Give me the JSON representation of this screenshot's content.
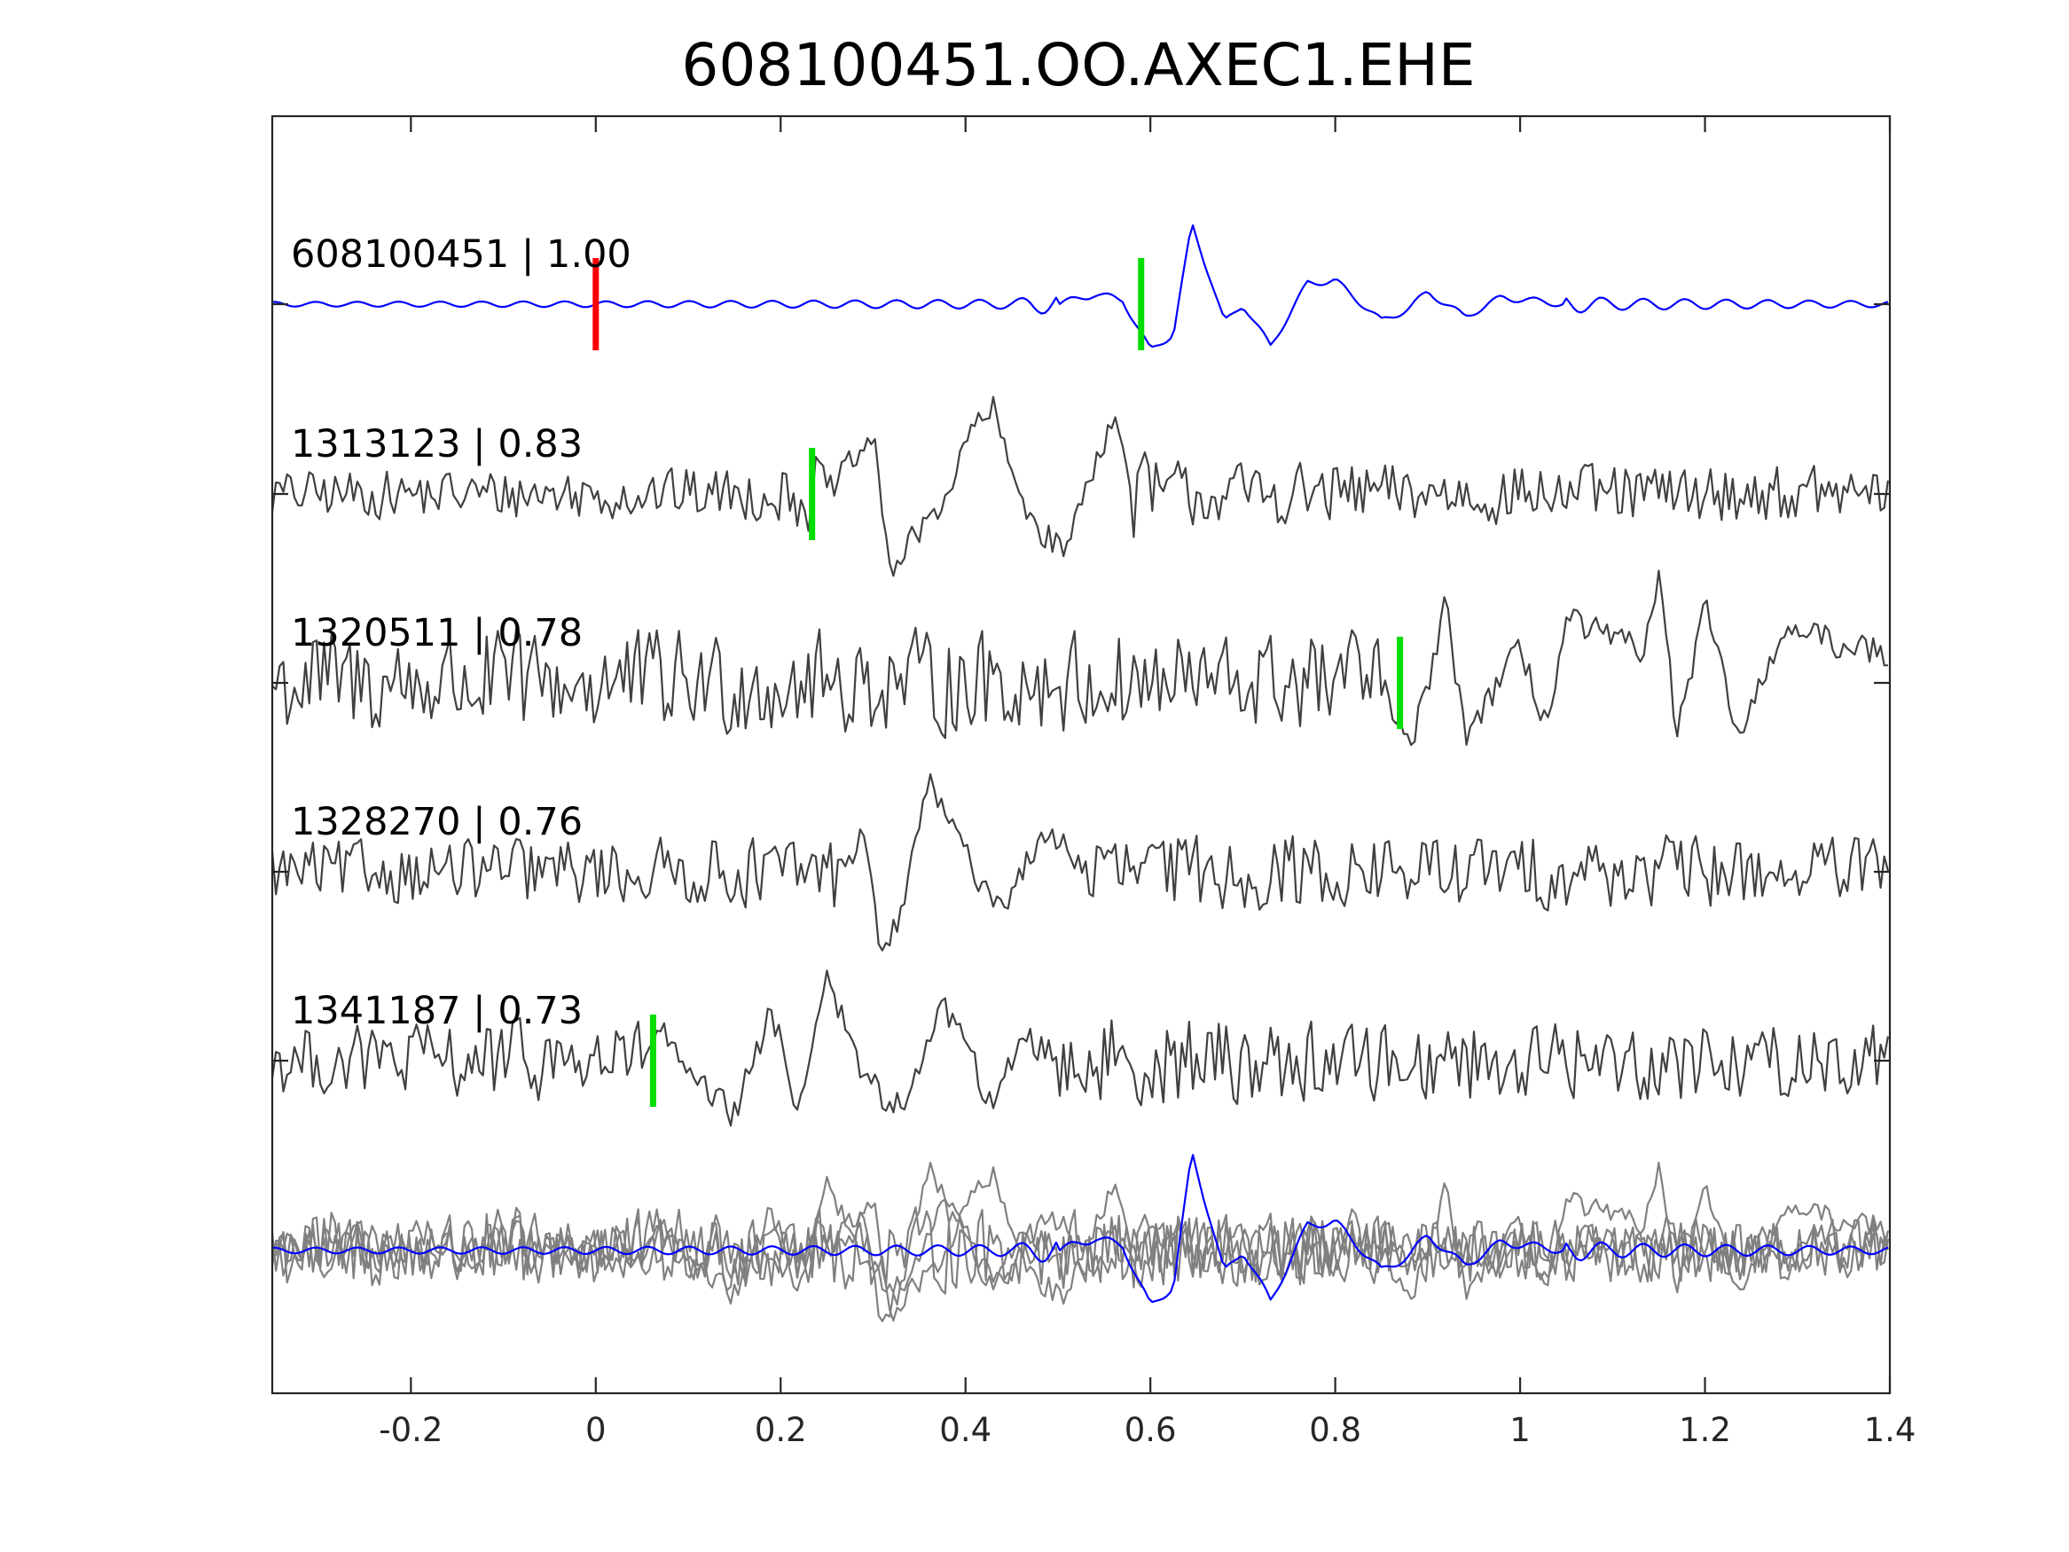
{
  "chart_data": {
    "type": "line",
    "title": "608100451.OO.AXEC1.EHE",
    "xlabel": "",
    "ylabel": "",
    "xlim": [
      -0.35,
      1.4
    ],
    "xticks": [
      -0.2,
      0,
      0.2,
      0.4,
      0.6,
      0.8,
      1,
      1.2,
      1.4
    ],
    "xtick_labels": [
      "-0.2",
      "0",
      "0.2",
      "0.4",
      "0.6",
      "0.8",
      "1",
      "1.2",
      "1.4"
    ],
    "grid": false,
    "sample_dt": 0.004,
    "colors": {
      "template": "#0000ff",
      "neighbor": "#404040",
      "overlay_neighbor": "#808080",
      "pick_template": "#ff0000",
      "pick_arrival": "#00dd00",
      "axes": "#262626"
    },
    "series": [
      {
        "label": "608100451 | 1.00",
        "color": "#0000ff",
        "picks": [
          {
            "t": 0.0,
            "color": "#ff0000"
          },
          {
            "t": 0.59,
            "color": "#00dd00"
          }
        ],
        "envelope": [
          [
            -0.35,
            0.04
          ],
          [
            0.0,
            0.05
          ],
          [
            0.2,
            0.06
          ],
          [
            0.45,
            0.08
          ],
          [
            0.52,
            0.25
          ],
          [
            0.56,
            0.55
          ],
          [
            0.6,
            1.0
          ],
          [
            0.66,
            1.0
          ],
          [
            0.72,
            0.75
          ],
          [
            0.8,
            0.55
          ],
          [
            0.9,
            0.35
          ],
          [
            1.0,
            0.22
          ],
          [
            1.1,
            0.1
          ],
          [
            1.4,
            0.05
          ]
        ],
        "waveform": [
          [
            0.5,
            0.0
          ],
          [
            0.54,
            0.12
          ],
          [
            0.57,
            0.05
          ],
          [
            0.6,
            -0.55
          ],
          [
            0.625,
            -0.35
          ],
          [
            0.645,
            0.95
          ],
          [
            0.665,
            0.3
          ],
          [
            0.68,
            -0.22
          ],
          [
            0.7,
            0.0
          ],
          [
            0.73,
            -0.5
          ],
          [
            0.77,
            0.25
          ],
          [
            0.8,
            0.28
          ],
          [
            0.85,
            -0.2
          ],
          [
            0.88,
            -0.05
          ],
          [
            0.9,
            0.15
          ],
          [
            0.94,
            -0.15
          ],
          [
            0.98,
            0.08
          ],
          [
            1.05,
            0.0
          ]
        ]
      },
      {
        "label": "1313123 | 0.83",
        "color": "#404040",
        "picks": [
          {
            "t": 0.234,
            "color": "#00dd00"
          }
        ],
        "envelope": [
          [
            -0.35,
            0.25
          ],
          [
            0.2,
            0.3
          ],
          [
            0.26,
            0.55
          ],
          [
            0.3,
            1.0
          ],
          [
            0.5,
            1.0
          ],
          [
            0.56,
            0.55
          ],
          [
            0.65,
            0.35
          ],
          [
            1.4,
            0.3
          ]
        ],
        "waveform": [
          [
            0.25,
            0.0
          ],
          [
            0.3,
            0.6
          ],
          [
            0.32,
            -0.85
          ],
          [
            0.35,
            -0.4
          ],
          [
            0.38,
            0.0
          ],
          [
            0.41,
            0.75
          ],
          [
            0.43,
            0.9
          ],
          [
            0.45,
            0.2
          ],
          [
            0.48,
            -0.4
          ],
          [
            0.51,
            -0.6
          ],
          [
            0.53,
            0.1
          ],
          [
            0.56,
            0.85
          ],
          [
            0.58,
            0.0
          ]
        ]
      },
      {
        "label": "1320511 | 0.78",
        "color": "#404040",
        "picks": [
          {
            "t": 0.87,
            "color": "#00dd00"
          }
        ],
        "envelope": [
          [
            -0.35,
            0.55
          ],
          [
            0.8,
            0.5
          ],
          [
            0.88,
            0.75
          ],
          [
            0.95,
            0.8
          ],
          [
            1.1,
            0.85
          ],
          [
            1.2,
            1.0
          ],
          [
            1.3,
            0.8
          ],
          [
            1.4,
            0.7
          ]
        ],
        "waveform": [
          [
            0.85,
            0.0
          ],
          [
            0.88,
            -0.7
          ],
          [
            0.9,
            0.0
          ],
          [
            0.92,
            0.75
          ],
          [
            0.94,
            -0.5
          ],
          [
            1.0,
            0.3
          ],
          [
            1.03,
            -0.4
          ],
          [
            1.05,
            0.6
          ],
          [
            1.13,
            0.3
          ],
          [
            1.15,
            1.0
          ],
          [
            1.17,
            -0.5
          ],
          [
            1.2,
            0.7
          ],
          [
            1.24,
            -0.6
          ],
          [
            1.28,
            0.5
          ],
          [
            1.4,
            0.3
          ]
        ]
      },
      {
        "label": "1328270 | 0.76",
        "color": "#404040",
        "picks": [],
        "envelope": [
          [
            -0.35,
            0.35
          ],
          [
            0.25,
            0.4
          ],
          [
            0.28,
            0.7
          ],
          [
            0.32,
            1.0
          ],
          [
            0.4,
            1.0
          ],
          [
            0.45,
            0.6
          ],
          [
            0.55,
            0.45
          ],
          [
            1.4,
            0.4
          ]
        ],
        "waveform": [
          [
            0.26,
            0.0
          ],
          [
            0.29,
            0.4
          ],
          [
            0.31,
            -0.95
          ],
          [
            0.33,
            -0.5
          ],
          [
            0.35,
            0.6
          ],
          [
            0.36,
            1.0
          ],
          [
            0.38,
            0.6
          ],
          [
            0.41,
            0.0
          ],
          [
            0.44,
            -0.4
          ],
          [
            0.47,
            0.2
          ],
          [
            0.5,
            0.4
          ],
          [
            0.53,
            0.0
          ]
        ]
      },
      {
        "label": "1341187 | 0.73",
        "color": "#404040",
        "picks": [
          {
            "t": 0.062,
            "color": "#00dd00"
          }
        ],
        "envelope": [
          [
            -0.35,
            0.35
          ],
          [
            0.05,
            0.45
          ],
          [
            0.12,
            0.65
          ],
          [
            0.2,
            0.9
          ],
          [
            0.28,
            1.0
          ],
          [
            0.4,
            0.8
          ],
          [
            0.5,
            0.5
          ],
          [
            0.7,
            0.45
          ],
          [
            1.4,
            0.4
          ]
        ],
        "waveform": [
          [
            0.05,
            0.0
          ],
          [
            0.07,
            0.35
          ],
          [
            0.1,
            -0.2
          ],
          [
            0.15,
            -0.55
          ],
          [
            0.19,
            0.5
          ],
          [
            0.22,
            -0.5
          ],
          [
            0.25,
            0.95
          ],
          [
            0.28,
            0.0
          ],
          [
            0.32,
            -0.5
          ],
          [
            0.35,
            -0.2
          ],
          [
            0.37,
            0.6
          ],
          [
            0.39,
            0.4
          ],
          [
            0.43,
            -0.55
          ],
          [
            0.46,
            0.3
          ],
          [
            0.5,
            0.0
          ]
        ]
      }
    ],
    "overlay_panel": "all traces superimposed (template in blue, neighbors in gray)"
  }
}
